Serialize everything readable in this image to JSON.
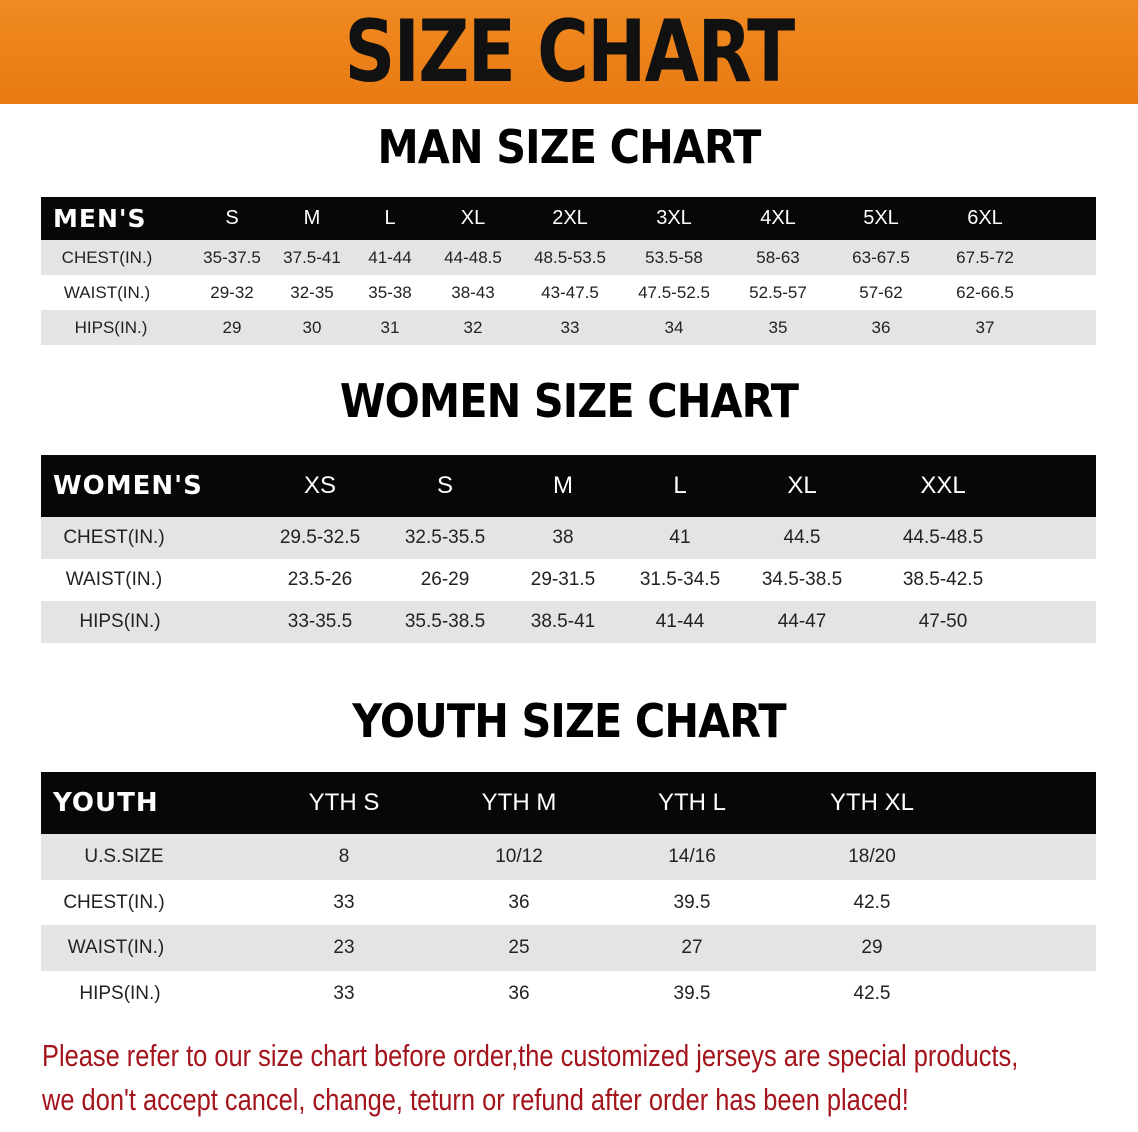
{
  "banner_title": "SIZE CHART",
  "colors": {
    "banner": "#ec8219",
    "header_row": "#070707",
    "shaded_row": "#e4e4e4",
    "note_text": "#a3141c"
  },
  "men": {
    "title": "MAN SIZE CHART",
    "columns": [
      "MEN'S",
      "S",
      "M",
      "L",
      "XL",
      "2XL",
      "3XL",
      "4XL",
      "5XL",
      "6XL"
    ],
    "rows": [
      [
        "CHEST(IN.)",
        "35-37.5",
        "37.5-41",
        "41-44",
        "44-48.5",
        "48.5-53.5",
        "53.5-58",
        "58-63",
        "63-67.5",
        "67.5-72"
      ],
      [
        "WAIST(IN.)",
        "29-32",
        "32-35",
        "35-38",
        "38-43",
        "43-47.5",
        "47.5-52.5",
        "52.5-57",
        "57-62",
        "62-66.5"
      ],
      [
        "HIPS(IN.)",
        "29",
        "30",
        "31",
        "32",
        "33",
        "34",
        "35",
        "36",
        "37"
      ]
    ]
  },
  "women": {
    "title": "WOMEN SIZE CHART",
    "columns": [
      "WOMEN'S",
      "XS",
      "S",
      "M",
      "L",
      "XL",
      "XXL"
    ],
    "rows": [
      [
        "CHEST(IN.)",
        "29.5-32.5",
        "32.5-35.5",
        "38",
        "41",
        "44.5",
        "44.5-48.5"
      ],
      [
        "WAIST(IN.)",
        "23.5-26",
        "26-29",
        "29-31.5",
        "31.5-34.5",
        "34.5-38.5",
        "38.5-42.5"
      ],
      [
        "HIPS(IN.)",
        "33-35.5",
        "35.5-38.5",
        "38.5-41",
        "41-44",
        "44-47",
        "47-50"
      ]
    ]
  },
  "youth": {
    "title": "YOUTH SIZE CHART",
    "columns": [
      "YOUTH",
      "YTH S",
      "YTH M",
      "YTH L",
      "YTH XL"
    ],
    "rows": [
      [
        "U.S.SIZE",
        "8",
        "10/12",
        "14/16",
        "18/20"
      ],
      [
        "CHEST(IN.)",
        "33",
        "36",
        "39.5",
        "42.5"
      ],
      [
        "WAIST(IN.)",
        "23",
        "25",
        "27",
        "29"
      ],
      [
        "HIPS(IN.)",
        "33",
        "36",
        "39.5",
        "42.5"
      ]
    ]
  },
  "note": {
    "line1": "Please refer to our size chart before order,the customized jerseys are special products,",
    "line2": "we don't accept cancel, change, teturn or refund after order has been placed!"
  }
}
